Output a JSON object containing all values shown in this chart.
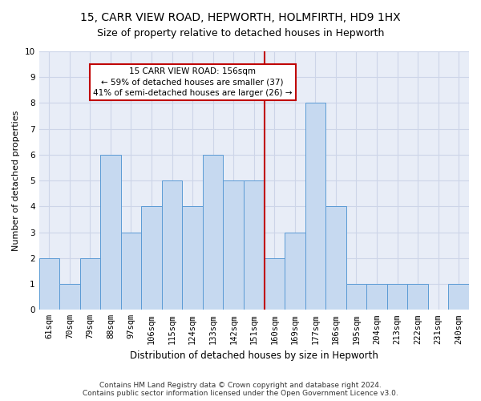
{
  "title1": "15, CARR VIEW ROAD, HEPWORTH, HOLMFIRTH, HD9 1HX",
  "title2": "Size of property relative to detached houses in Hepworth",
  "xlabel": "Distribution of detached houses by size in Hepworth",
  "ylabel": "Number of detached properties",
  "categories": [
    "61sqm",
    "70sqm",
    "79sqm",
    "88sqm",
    "97sqm",
    "106sqm",
    "115sqm",
    "124sqm",
    "133sqm",
    "142sqm",
    "151sqm",
    "160sqm",
    "169sqm",
    "177sqm",
    "186sqm",
    "195sqm",
    "204sqm",
    "213sqm",
    "222sqm",
    "231sqm",
    "240sqm"
  ],
  "values": [
    2,
    1,
    2,
    6,
    3,
    4,
    5,
    4,
    6,
    5,
    5,
    2,
    3,
    8,
    4,
    1,
    1,
    1,
    1,
    0,
    1
  ],
  "bar_color": "#c6d9f0",
  "bar_edge_color": "#5b9bd5",
  "property_line_color": "#c00000",
  "property_line_index": 10,
  "annotation_text": "15 CARR VIEW ROAD: 156sqm\n← 59% of detached houses are smaller (37)\n41% of semi-detached houses are larger (26) →",
  "ylim": [
    0,
    10
  ],
  "yticks": [
    0,
    1,
    2,
    3,
    4,
    5,
    6,
    7,
    8,
    9,
    10
  ],
  "grid_color": "#cdd5e8",
  "background_color": "#e8edf7",
  "footer": "Contains HM Land Registry data © Crown copyright and database right 2024.\nContains public sector information licensed under the Open Government Licence v3.0.",
  "title1_fontsize": 10,
  "title2_fontsize": 9,
  "xlabel_fontsize": 8.5,
  "ylabel_fontsize": 8,
  "tick_fontsize": 7.5,
  "annotation_fontsize": 7.5,
  "footer_fontsize": 6.5
}
